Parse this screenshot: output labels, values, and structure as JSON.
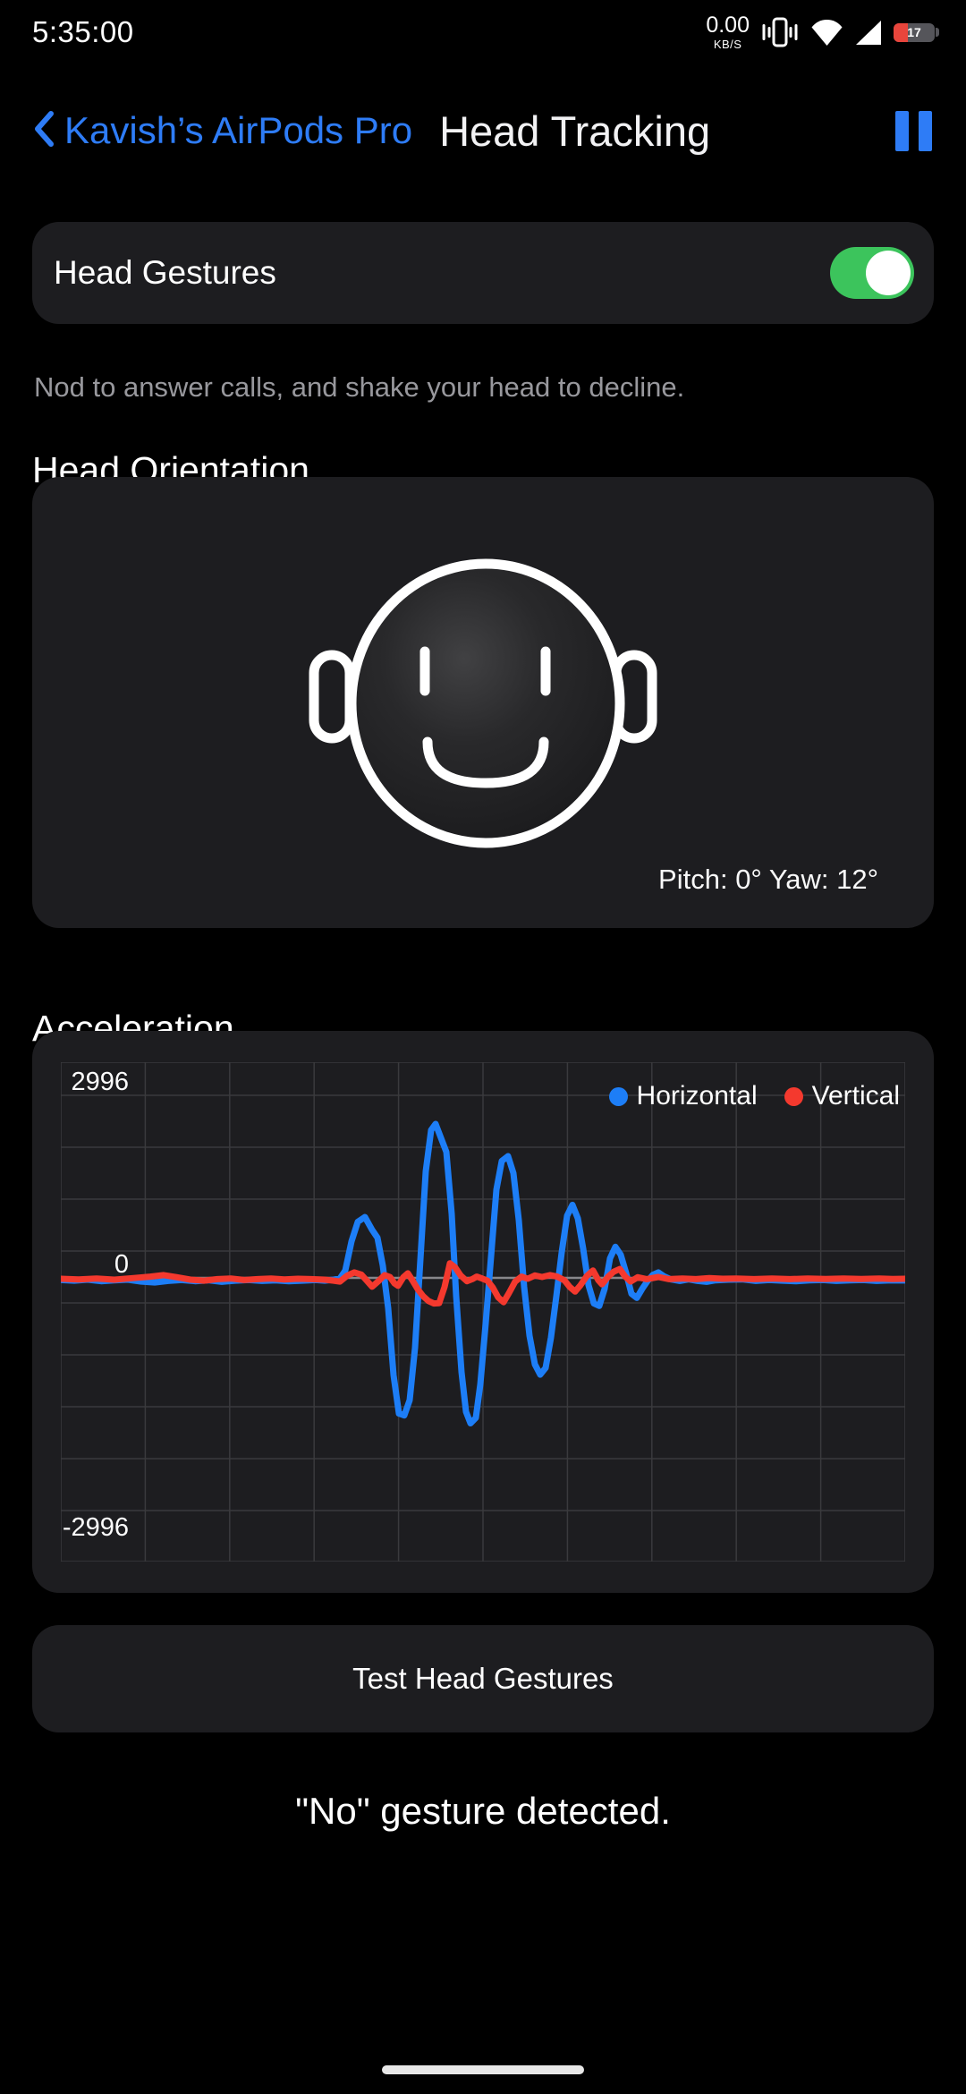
{
  "status_bar": {
    "time": "5:35:00",
    "network_speed": "0.00",
    "network_unit": "KB/S",
    "battery_level": "17",
    "icons": [
      "vibrate-icon",
      "wifi-icon",
      "cellular-signal-icon",
      "battery-icon"
    ]
  },
  "header": {
    "back_label": "Kavish’s AirPods Pro",
    "title": "Head Tracking",
    "pause_icon": "pause-icon"
  },
  "head_gestures": {
    "label": "Head Gestures",
    "enabled": true,
    "description": "Nod to answer calls, and shake your head to decline."
  },
  "head_orientation": {
    "heading": "Head Orientation",
    "pitch_yaw_label": "Pitch: 0° Yaw: 12°"
  },
  "acceleration": {
    "heading": "Acceleration"
  },
  "chart_data": {
    "type": "line",
    "title": "Acceleration",
    "xlabel": "",
    "ylabel": "",
    "y_tick_labels": [
      "2996",
      "0",
      "-2996"
    ],
    "y_ticks": [
      2996,
      0,
      -2996
    ],
    "ylim": [
      -4660,
      3540
    ],
    "grid": true,
    "legend_position": "top-right",
    "series": [
      {
        "name": "Horizontal",
        "color": "#1d7ef7",
        "points": [
          [
            0,
            -35
          ],
          [
            15,
            -45
          ],
          [
            30,
            -30
          ],
          [
            45,
            -55
          ],
          [
            60,
            -40
          ],
          [
            75,
            -30
          ],
          [
            90,
            -60
          ],
          [
            105,
            -75
          ],
          [
            120,
            -50
          ],
          [
            135,
            -35
          ],
          [
            150,
            -55
          ],
          [
            165,
            -40
          ],
          [
            180,
            -65
          ],
          [
            195,
            -45
          ],
          [
            210,
            -35
          ],
          [
            225,
            -50
          ],
          [
            240,
            -40
          ],
          [
            255,
            -55
          ],
          [
            270,
            -45
          ],
          [
            285,
            -35
          ],
          [
            295,
            -45
          ],
          [
            305,
            -30
          ],
          [
            312,
            -10
          ],
          [
            318,
            120
          ],
          [
            325,
            600
          ],
          [
            332,
            920
          ],
          [
            340,
            1000
          ],
          [
            348,
            790
          ],
          [
            354,
            660
          ],
          [
            360,
            200
          ],
          [
            366,
            -500
          ],
          [
            372,
            -1600
          ],
          [
            378,
            -2230
          ],
          [
            384,
            -2260
          ],
          [
            390,
            -2010
          ],
          [
            396,
            -1150
          ],
          [
            402,
            300
          ],
          [
            408,
            1750
          ],
          [
            414,
            2430
          ],
          [
            419,
            2530
          ],
          [
            425,
            2300
          ],
          [
            431,
            2070
          ],
          [
            437,
            1050
          ],
          [
            442,
            -300
          ],
          [
            448,
            -1550
          ],
          [
            453,
            -2200
          ],
          [
            458,
            -2390
          ],
          [
            464,
            -2300
          ],
          [
            469,
            -1750
          ],
          [
            475,
            -750
          ],
          [
            481,
            350
          ],
          [
            487,
            1450
          ],
          [
            493,
            1920
          ],
          [
            500,
            2000
          ],
          [
            506,
            1720
          ],
          [
            512,
            950
          ],
          [
            518,
            -150
          ],
          [
            524,
            -950
          ],
          [
            530,
            -1420
          ],
          [
            536,
            -1590
          ],
          [
            542,
            -1480
          ],
          [
            548,
            -980
          ],
          [
            554,
            -300
          ],
          [
            560,
            420
          ],
          [
            566,
            1020
          ],
          [
            572,
            1200
          ],
          [
            578,
            980
          ],
          [
            584,
            480
          ],
          [
            590,
            -120
          ],
          [
            596,
            -420
          ],
          [
            602,
            -460
          ],
          [
            608,
            -180
          ],
          [
            614,
            320
          ],
          [
            620,
            510
          ],
          [
            626,
            380
          ],
          [
            632,
            80
          ],
          [
            638,
            -260
          ],
          [
            644,
            -330
          ],
          [
            650,
            -180
          ],
          [
            656,
            -50
          ],
          [
            662,
            50
          ],
          [
            668,
            90
          ],
          [
            674,
            30
          ],
          [
            682,
            -25
          ],
          [
            692,
            -50
          ],
          [
            702,
            -25
          ],
          [
            712,
            -50
          ],
          [
            722,
            -65
          ],
          [
            732,
            -40
          ],
          [
            747,
            -30
          ],
          [
            762,
            -25
          ],
          [
            777,
            -50
          ],
          [
            792,
            -35
          ],
          [
            807,
            -45
          ],
          [
            822,
            -55
          ],
          [
            837,
            -40
          ],
          [
            852,
            -35
          ],
          [
            867,
            -50
          ],
          [
            882,
            -40
          ],
          [
            897,
            -35
          ],
          [
            912,
            -50
          ],
          [
            928,
            -40
          ],
          [
            944,
            -42
          ]
        ]
      },
      {
        "name": "Vertical",
        "color": "#f4392e",
        "points": [
          [
            0,
            -15
          ],
          [
            20,
            -25
          ],
          [
            40,
            -10
          ],
          [
            60,
            -30
          ],
          [
            80,
            -5
          ],
          [
            100,
            20
          ],
          [
            115,
            45
          ],
          [
            130,
            10
          ],
          [
            145,
            -30
          ],
          [
            160,
            -45
          ],
          [
            175,
            -20
          ],
          [
            190,
            -10
          ],
          [
            205,
            -35
          ],
          [
            220,
            -20
          ],
          [
            235,
            -10
          ],
          [
            250,
            -25
          ],
          [
            265,
            -15
          ],
          [
            280,
            -20
          ],
          [
            295,
            -30
          ],
          [
            305,
            -45
          ],
          [
            312,
            -60
          ],
          [
            320,
            35
          ],
          [
            328,
            90
          ],
          [
            336,
            55
          ],
          [
            343,
            -60
          ],
          [
            348,
            -145
          ],
          [
            355,
            -55
          ],
          [
            362,
            45
          ],
          [
            368,
            15
          ],
          [
            373,
            -90
          ],
          [
            377,
            -130
          ],
          [
            383,
            10
          ],
          [
            388,
            75
          ],
          [
            393,
            -40
          ],
          [
            399,
            -185
          ],
          [
            405,
            -300
          ],
          [
            411,
            -380
          ],
          [
            417,
            -420
          ],
          [
            423,
            -415
          ],
          [
            429,
            -150
          ],
          [
            435,
            240
          ],
          [
            441,
            170
          ],
          [
            447,
            40
          ],
          [
            454,
            -55
          ],
          [
            460,
            -20
          ],
          [
            465,
            20
          ],
          [
            471,
            -10
          ],
          [
            477,
            -45
          ],
          [
            483,
            -160
          ],
          [
            489,
            -320
          ],
          [
            495,
            -400
          ],
          [
            501,
            -250
          ],
          [
            508,
            -60
          ],
          [
            515,
            20
          ],
          [
            522,
            -15
          ],
          [
            530,
            40
          ],
          [
            538,
            15
          ],
          [
            547,
            45
          ],
          [
            555,
            20
          ],
          [
            563,
            -40
          ],
          [
            569,
            -150
          ],
          [
            575,
            -225
          ],
          [
            581,
            -120
          ],
          [
            588,
            30
          ],
          [
            595,
            120
          ],
          [
            601,
            -40
          ],
          [
            605,
            -105
          ],
          [
            612,
            20
          ],
          [
            618,
            100
          ],
          [
            625,
            145
          ],
          [
            631,
            20
          ],
          [
            637,
            -60
          ],
          [
            645,
            10
          ],
          [
            655,
            -20
          ],
          [
            668,
            15
          ],
          [
            680,
            -20
          ],
          [
            695,
            -10
          ],
          [
            710,
            -20
          ],
          [
            725,
            -5
          ],
          [
            740,
            -15
          ],
          [
            755,
            -10
          ],
          [
            775,
            -20
          ],
          [
            795,
            -10
          ],
          [
            815,
            -20
          ],
          [
            835,
            -10
          ],
          [
            855,
            -18
          ],
          [
            875,
            -10
          ],
          [
            895,
            -18
          ],
          [
            915,
            -12
          ],
          [
            930,
            -18
          ],
          [
            944,
            -14
          ]
        ]
      }
    ]
  },
  "test_button": {
    "label": "Test Head Gestures"
  },
  "gesture_result": "\"No\" gesture detected.",
  "colors": {
    "accent_blue": "#2e7cf6",
    "toggle_green": "#3cc45c",
    "chart_blue": "#1d7ef7",
    "chart_red": "#f4392e",
    "card_bg": "#1d1d20",
    "muted_text": "#98989d",
    "battery_red": "#e8453c",
    "grid_line": "#3a3a3d",
    "zero_line": "#87878b"
  }
}
